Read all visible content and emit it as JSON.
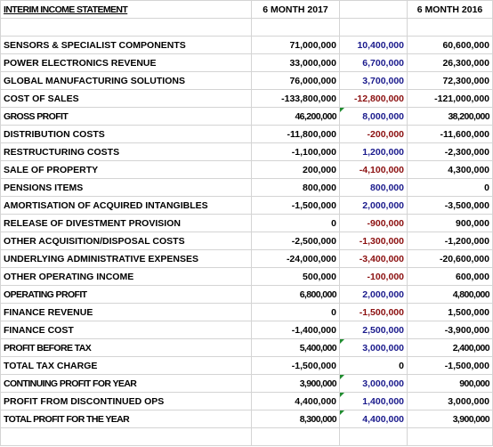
{
  "header": {
    "title": "INTERIM INCOME STATEMENT",
    "col_2017": "6 MONTH 2017",
    "col_2016": "6 MONTH 2016"
  },
  "table": {
    "rows": [
      {
        "label": "SENSORS & SPECIALIST COMPONENTS",
        "y2017": "71,000,000",
        "change": "10,400,000",
        "y2016": "60,600,000",
        "bold": false,
        "marker": false
      },
      {
        "label": "POWER ELECTRONICS REVENUE",
        "y2017": "33,000,000",
        "change": "6,700,000",
        "y2016": "26,300,000",
        "bold": false,
        "marker": false
      },
      {
        "label": "GLOBAL MANUFACTURING SOLUTIONS",
        "y2017": "76,000,000",
        "change": "3,700,000",
        "y2016": "72,300,000",
        "bold": false,
        "marker": false
      },
      {
        "label": "COST OF SALES",
        "y2017": "-133,800,000",
        "change": "-12,800,000",
        "y2016": "-121,000,000",
        "bold": false,
        "marker": false
      },
      {
        "label": "GROSS PROFIT",
        "y2017": "46,200,000",
        "change": "8,000,000",
        "y2016": "38,200,000",
        "bold": true,
        "marker": true
      },
      {
        "label": "DISTRIBUTION COSTS",
        "y2017": "-11,800,000",
        "change": "-200,000",
        "y2016": "-11,600,000",
        "bold": false,
        "marker": false
      },
      {
        "label": "RESTRUCTURING COSTS",
        "y2017": "-1,100,000",
        "change": "1,200,000",
        "y2016": "-2,300,000",
        "bold": false,
        "marker": false
      },
      {
        "label": "SALE OF PROPERTY",
        "y2017": "200,000",
        "change": "-4,100,000",
        "y2016": "4,300,000",
        "bold": false,
        "marker": false
      },
      {
        "label": "PENSIONS ITEMS",
        "y2017": "800,000",
        "change": "800,000",
        "y2016": "0",
        "bold": false,
        "marker": false
      },
      {
        "label": "AMORTISATION OF ACQUIRED INTANGIBLES",
        "y2017": "-1,500,000",
        "change": "2,000,000",
        "y2016": "-3,500,000",
        "bold": false,
        "marker": false
      },
      {
        "label": "RELEASE OF DIVESTMENT PROVISION",
        "y2017": "0",
        "change": "-900,000",
        "y2016": "900,000",
        "bold": false,
        "marker": false
      },
      {
        "label": "OTHER ACQUISITION/DISPOSAL COSTS",
        "y2017": "-2,500,000",
        "change": "-1,300,000",
        "y2016": "-1,200,000",
        "bold": false,
        "marker": false
      },
      {
        "label": "UNDERLYING ADMINISTRATIVE EXPENSES",
        "y2017": "-24,000,000",
        "change": "-3,400,000",
        "y2016": "-20,600,000",
        "bold": false,
        "marker": false
      },
      {
        "label": "OTHER OPERATING INCOME",
        "y2017": "500,000",
        "change": "-100,000",
        "y2016": "600,000",
        "bold": false,
        "marker": false
      },
      {
        "label": "OPERATING PROFIT",
        "y2017": "6,800,000",
        "change": "2,000,000",
        "y2016": "4,800,000",
        "bold": true,
        "marker": false
      },
      {
        "label": "FINANCE REVENUE",
        "y2017": "0",
        "change": "-1,500,000",
        "y2016": "1,500,000",
        "bold": false,
        "marker": false
      },
      {
        "label": "FINANCE COST",
        "y2017": "-1,400,000",
        "change": "2,500,000",
        "y2016": "-3,900,000",
        "bold": false,
        "marker": false
      },
      {
        "label": "PROFIT BEFORE TAX",
        "y2017": "5,400,000",
        "change": "3,000,000",
        "y2016": "2,400,000",
        "bold": true,
        "marker": true
      },
      {
        "label": "TOTAL TAX CHARGE",
        "y2017": "-1,500,000",
        "change": "0",
        "y2016": "-1,500,000",
        "bold": false,
        "marker": false
      },
      {
        "label": "CONTINUING PROFIT FOR YEAR",
        "y2017": "3,900,000",
        "change": "3,000,000",
        "y2016": "900,000",
        "bold": true,
        "marker": true
      },
      {
        "label": "PROFIT FROM DISCONTINUED OPS",
        "y2017": "4,400,000",
        "change": "1,400,000",
        "y2016": "3,000,000",
        "bold": false,
        "marker": true
      },
      {
        "label": "TOTAL PROFIT FOR THE YEAR",
        "y2017": "8,300,000",
        "change": "4,400,000",
        "y2016": "3,900,000",
        "bold": true,
        "marker": true
      }
    ]
  }
}
